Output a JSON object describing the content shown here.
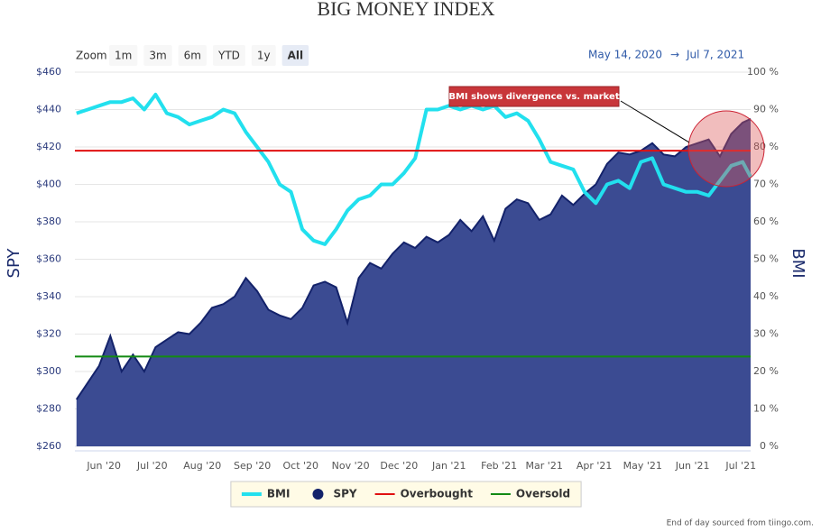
{
  "chart_data": {
    "type": "combo",
    "title": "BIG MONEY INDEX",
    "zoom_label": "Zoom",
    "range_buttons": [
      "1m",
      "3m",
      "6m",
      "YTD",
      "1y",
      "All"
    ],
    "date_from": "May 14, 2020",
    "date_separator": "→",
    "date_to": "Jul 7, 2021",
    "y_title": "SPY",
    "y2_title": "BMI",
    "credit": "End of day sourced from tiingo.com.",
    "annotation": "BMI shows divergence vs. market",
    "grid": true,
    "xlim": [
      "2020-05-14",
      "2021-07-07"
    ],
    "xticks": [
      {
        "value": "2020-06-01",
        "label": "Jun '20"
      },
      {
        "value": "2020-07-01",
        "label": "Jul '20"
      },
      {
        "value": "2020-08-01",
        "label": "Aug '20"
      },
      {
        "value": "2020-09-01",
        "label": "Sep '20"
      },
      {
        "value": "2020-10-01",
        "label": "Oct '20"
      },
      {
        "value": "2020-11-01",
        "label": "Nov '20"
      },
      {
        "value": "2020-12-01",
        "label": "Dec '20"
      },
      {
        "value": "2021-01-01",
        "label": "Jan '21"
      },
      {
        "value": "2021-02-01",
        "label": "Feb '21"
      },
      {
        "value": "2021-03-01",
        "label": "Mar '21"
      },
      {
        "value": "2021-04-01",
        "label": "Apr '21"
      },
      {
        "value": "2021-05-01",
        "label": "May '21"
      },
      {
        "value": "2021-06-01",
        "label": "Jun '21"
      },
      {
        "value": "2021-07-01",
        "label": "Jul '21"
      }
    ],
    "ylim": [
      260,
      460
    ],
    "yticks": [
      {
        "value": 260,
        "label": "$260"
      },
      {
        "value": 280,
        "label": "$280"
      },
      {
        "value": 300,
        "label": "$300"
      },
      {
        "value": 320,
        "label": "$320"
      },
      {
        "value": 340,
        "label": "$340"
      },
      {
        "value": 360,
        "label": "$360"
      },
      {
        "value": 380,
        "label": "$380"
      },
      {
        "value": 400,
        "label": "$400"
      },
      {
        "value": 420,
        "label": "$420"
      },
      {
        "value": 440,
        "label": "$440"
      },
      {
        "value": 460,
        "label": "$460"
      }
    ],
    "y2lim": [
      0,
      100
    ],
    "y2ticks": [
      {
        "value": 0,
        "label": "0 %"
      },
      {
        "value": 10,
        "label": "10 %"
      },
      {
        "value": 20,
        "label": "20 %"
      },
      {
        "value": 30,
        "label": "30 %"
      },
      {
        "value": 40,
        "label": "40 %"
      },
      {
        "value": 50,
        "label": "50 %"
      },
      {
        "value": 60,
        "label": "60 %"
      },
      {
        "value": 70,
        "label": "70 %"
      },
      {
        "value": 80,
        "label": "80 %"
      },
      {
        "value": 90,
        "label": "90 %"
      },
      {
        "value": 100,
        "label": "100 %"
      }
    ],
    "x": [
      "2020-05-15",
      "2020-05-22",
      "2020-05-29",
      "2020-06-05",
      "2020-06-12",
      "2020-06-19",
      "2020-06-26",
      "2020-07-03",
      "2020-07-10",
      "2020-07-17",
      "2020-07-24",
      "2020-07-31",
      "2020-08-07",
      "2020-08-14",
      "2020-08-21",
      "2020-08-28",
      "2020-09-04",
      "2020-09-11",
      "2020-09-18",
      "2020-09-25",
      "2020-10-02",
      "2020-10-09",
      "2020-10-16",
      "2020-10-23",
      "2020-10-30",
      "2020-11-06",
      "2020-11-13",
      "2020-11-20",
      "2020-11-27",
      "2020-12-04",
      "2020-12-11",
      "2020-12-18",
      "2020-12-25",
      "2021-01-01",
      "2021-01-08",
      "2021-01-15",
      "2021-01-22",
      "2021-01-29",
      "2021-02-05",
      "2021-02-12",
      "2021-02-19",
      "2021-02-26",
      "2021-03-05",
      "2021-03-12",
      "2021-03-19",
      "2021-03-26",
      "2021-04-02",
      "2021-04-09",
      "2021-04-16",
      "2021-04-23",
      "2021-04-30",
      "2021-05-07",
      "2021-05-14",
      "2021-05-21",
      "2021-05-28",
      "2021-06-04",
      "2021-06-11",
      "2021-06-18",
      "2021-06-25",
      "2021-07-02",
      "2021-07-07"
    ],
    "series": [
      {
        "name": "BMI",
        "kind": "line",
        "axis": "y2",
        "color": "#22e0ee",
        "values": [
          89,
          90,
          91,
          92,
          92,
          93,
          90,
          94,
          89,
          88,
          86,
          87,
          88,
          90,
          89,
          84,
          80,
          76,
          70,
          68,
          58,
          55,
          54,
          58,
          63,
          66,
          67,
          70,
          70,
          73,
          77,
          90,
          90,
          91,
          90,
          91,
          90,
          91,
          88,
          89,
          87,
          82,
          76,
          75,
          74,
          68,
          65,
          70,
          71,
          69,
          76,
          77,
          70,
          69,
          68,
          68,
          67,
          71,
          75,
          76,
          72
        ]
      },
      {
        "name": "SPY",
        "kind": "area",
        "axis": "y",
        "color": "#3b4b92",
        "values": [
          285,
          294,
          303,
          319,
          300,
          309,
          300,
          313,
          317,
          321,
          320,
          326,
          334,
          336,
          340,
          350,
          343,
          333,
          330,
          328,
          334,
          346,
          348,
          345,
          326,
          350,
          358,
          355,
          363,
          369,
          366,
          372,
          369,
          373,
          381,
          375,
          383,
          370,
          387,
          392,
          390,
          381,
          384,
          394,
          389,
          395,
          400,
          411,
          417,
          416,
          418,
          422,
          416,
          415,
          420,
          422,
          424,
          415,
          427,
          433,
          435
        ]
      }
    ],
    "reference_lines": [
      {
        "name": "Overbought",
        "axis": "y2",
        "value": 79,
        "color": "#e01010"
      },
      {
        "name": "Oversold",
        "axis": "y2",
        "value": 24,
        "color": "#138a13"
      }
    ]
  }
}
